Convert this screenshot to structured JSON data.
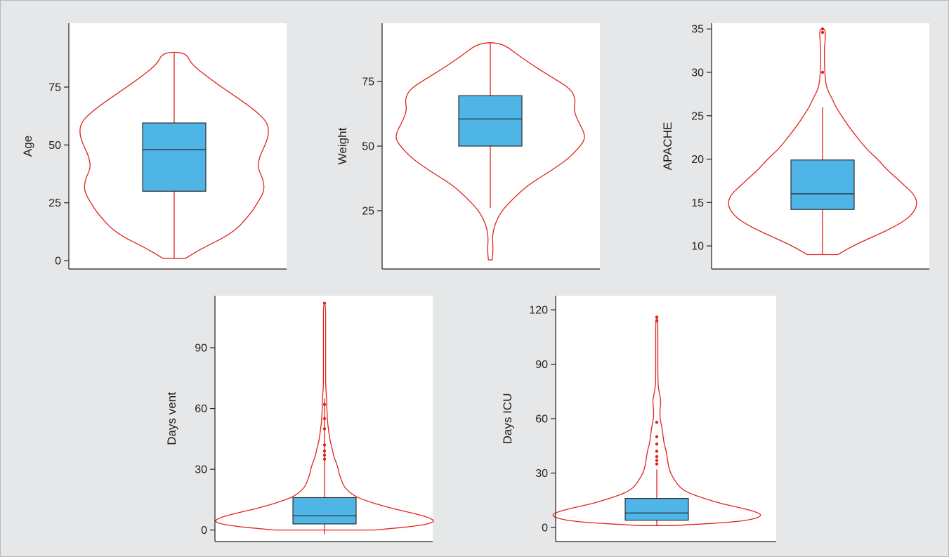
{
  "colors": {
    "background": "#e6e7e8",
    "panel": "#ffffff",
    "violin": "#e2231a",
    "box": "#4fb4e6",
    "axis": "#231f20"
  },
  "chart_data": [
    {
      "type": "violin",
      "ylabel": "Age",
      "ylim": [
        -3,
        102
      ],
      "ticks": [
        0,
        25,
        50,
        75
      ],
      "box": {
        "q1": 30,
        "median": 48,
        "q3": 59.5
      },
      "whiskers": [
        1,
        90
      ],
      "outliers": [],
      "violin_profile": [
        [
          1,
          0.12
        ],
        [
          5,
          0.28
        ],
        [
          12,
          0.62
        ],
        [
          20,
          0.8
        ],
        [
          25,
          0.88
        ],
        [
          30,
          0.95
        ],
        [
          35,
          0.94
        ],
        [
          40,
          0.88
        ],
        [
          45,
          0.9
        ],
        [
          50,
          0.96
        ],
        [
          55,
          1.0
        ],
        [
          60,
          0.98
        ],
        [
          65,
          0.85
        ],
        [
          70,
          0.68
        ],
        [
          75,
          0.5
        ],
        [
          80,
          0.33
        ],
        [
          85,
          0.18
        ],
        [
          90,
          0.12
        ]
      ]
    },
    {
      "type": "violin",
      "ylabel": "Weight",
      "ylim": [
        3,
        97
      ],
      "ticks": [
        25,
        50,
        75
      ],
      "box": {
        "q1": 50,
        "median": 60.5,
        "q3": 69.5
      },
      "whiskers": [
        26,
        90
      ],
      "outliers": [],
      "violin_profile": [
        [
          6,
          0.02
        ],
        [
          10,
          0.03
        ],
        [
          15,
          0.02
        ],
        [
          20,
          0.05
        ],
        [
          25,
          0.12
        ],
        [
          30,
          0.25
        ],
        [
          35,
          0.4
        ],
        [
          40,
          0.62
        ],
        [
          45,
          0.82
        ],
        [
          50,
          0.95
        ],
        [
          53,
          1.0
        ],
        [
          56,
          0.98
        ],
        [
          60,
          0.92
        ],
        [
          64,
          0.88
        ],
        [
          68,
          0.9
        ],
        [
          72,
          0.85
        ],
        [
          76,
          0.68
        ],
        [
          80,
          0.5
        ],
        [
          85,
          0.3
        ],
        [
          90,
          0.12
        ]
      ]
    },
    {
      "type": "violin",
      "ylabel": "APACHE",
      "ylim": [
        7.5,
        35.5
      ],
      "ticks": [
        10,
        15,
        20,
        25,
        30,
        35
      ],
      "box": {
        "q1": 14.2,
        "median": 16,
        "q3": 19.9
      },
      "whiskers": [
        9,
        26
      ],
      "outliers": [
        30,
        34.6,
        35
      ],
      "violin_profile": [
        [
          9,
          0.16
        ],
        [
          10,
          0.32
        ],
        [
          11,
          0.52
        ],
        [
          12,
          0.72
        ],
        [
          13,
          0.88
        ],
        [
          14,
          0.97
        ],
        [
          15,
          1.0
        ],
        [
          16,
          0.96
        ],
        [
          17,
          0.86
        ],
        [
          18,
          0.76
        ],
        [
          19,
          0.66
        ],
        [
          20,
          0.58
        ],
        [
          21,
          0.48
        ],
        [
          22,
          0.4
        ],
        [
          23,
          0.33
        ],
        [
          24,
          0.26
        ],
        [
          25,
          0.2
        ],
        [
          26,
          0.14
        ],
        [
          27,
          0.1
        ],
        [
          28,
          0.05
        ],
        [
          29,
          0.03
        ],
        [
          30,
          0.025
        ],
        [
          31,
          0.02
        ],
        [
          32,
          0.02
        ],
        [
          33,
          0.02
        ],
        [
          34,
          0.03
        ],
        [
          35,
          0.03
        ]
      ]
    },
    {
      "type": "violin",
      "ylabel": "Days vent",
      "ylim": [
        -5,
        115
      ],
      "ticks": [
        0,
        30,
        60,
        90
      ],
      "box": {
        "q1": 3,
        "median": 7,
        "q3": 16
      },
      "whiskers": [
        -2,
        65
      ],
      "outliers": [
        35,
        37,
        39,
        42,
        50,
        55,
        62,
        112
      ],
      "violin_profile": [
        [
          0,
          0.45
        ],
        [
          2,
          0.85
        ],
        [
          4,
          1.0
        ],
        [
          6,
          0.95
        ],
        [
          8,
          0.82
        ],
        [
          10,
          0.66
        ],
        [
          12,
          0.52
        ],
        [
          14,
          0.4
        ],
        [
          16,
          0.3
        ],
        [
          18,
          0.24
        ],
        [
          20,
          0.2
        ],
        [
          22,
          0.17
        ],
        [
          25,
          0.15
        ],
        [
          28,
          0.13
        ],
        [
          31,
          0.12
        ],
        [
          34,
          0.1
        ],
        [
          37,
          0.08
        ],
        [
          40,
          0.07
        ],
        [
          44,
          0.05
        ],
        [
          48,
          0.04
        ],
        [
          52,
          0.03
        ],
        [
          56,
          0.025
        ],
        [
          60,
          0.02
        ],
        [
          65,
          0.02
        ],
        [
          70,
          0.01
        ],
        [
          80,
          0.01
        ],
        [
          100,
          0.01
        ],
        [
          112,
          0.01
        ]
      ]
    },
    {
      "type": "violin",
      "ylabel": "Days ICU",
      "ylim": [
        -7,
        127
      ],
      "ticks": [
        0,
        30,
        60,
        90,
        120
      ],
      "box": {
        "q1": 4,
        "median": 8,
        "q3": 16
      },
      "whiskers": [
        1,
        32
      ],
      "outliers": [
        35,
        37,
        39,
        42,
        46,
        50,
        58,
        114,
        116
      ],
      "violin_profile": [
        [
          1,
          0.15
        ],
        [
          3,
          0.75
        ],
        [
          5,
          0.95
        ],
        [
          7,
          1.0
        ],
        [
          9,
          0.92
        ],
        [
          11,
          0.78
        ],
        [
          13,
          0.62
        ],
        [
          16,
          0.45
        ],
        [
          19,
          0.3
        ],
        [
          22,
          0.22
        ],
        [
          26,
          0.17
        ],
        [
          30,
          0.13
        ],
        [
          34,
          0.11
        ],
        [
          38,
          0.1
        ],
        [
          42,
          0.09
        ],
        [
          46,
          0.07
        ],
        [
          50,
          0.06
        ],
        [
          55,
          0.05
        ],
        [
          60,
          0.03
        ],
        [
          65,
          0.03
        ],
        [
          70,
          0.04
        ],
        [
          75,
          0.02
        ],
        [
          80,
          0.01
        ],
        [
          100,
          0.01
        ],
        [
          116,
          0.01
        ]
      ]
    }
  ]
}
